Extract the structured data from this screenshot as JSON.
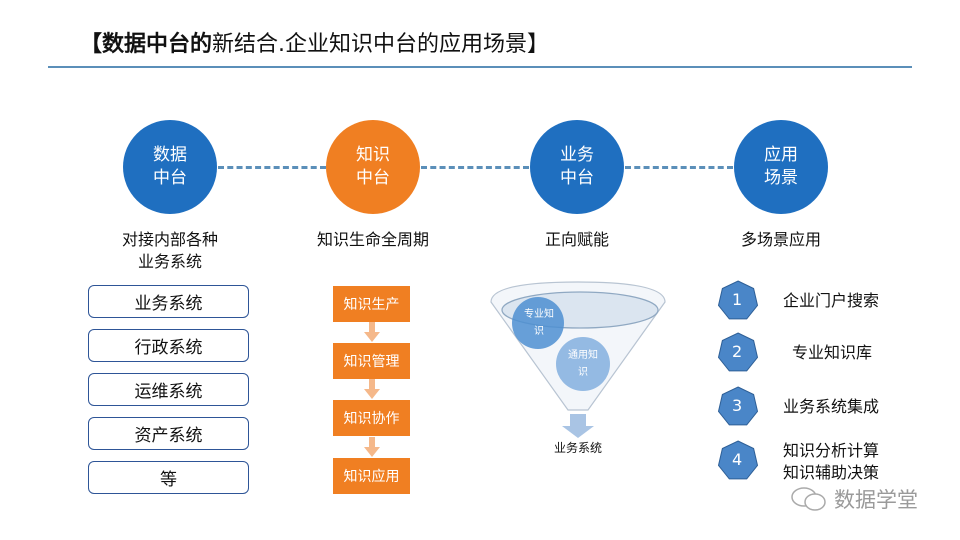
{
  "title": {
    "bold": "【数据中台的",
    "rest": "新结合.企业知识中台的应用场景】"
  },
  "stages": [
    {
      "label": "数据\n中台",
      "caption": "对接内部各种\n业务系统",
      "color": "#1f6fc0"
    },
    {
      "label": "知识\n中台",
      "caption": "知识生命全周期",
      "color": "#f07f22"
    },
    {
      "label": "业务\n中台",
      "caption": "正向赋能",
      "color": "#1f6fc0"
    },
    {
      "label": "应用\n场景",
      "caption": "多场景应用",
      "color": "#1f6fc0"
    }
  ],
  "systems": [
    "业务系统",
    "行政系统",
    "运维系统",
    "资产系统",
    "等"
  ],
  "knowledge_steps": [
    "知识生产",
    "知识管理",
    "知识协作",
    "知识应用"
  ],
  "funnel": {
    "inner": [
      "专业知\n识",
      "通用知\n识"
    ],
    "output": "业务系统"
  },
  "scenarios": [
    {
      "num": "1",
      "label": "企业门户搜索"
    },
    {
      "num": "2",
      "label": "专业知识库"
    },
    {
      "num": "3",
      "label": "业务系统集成"
    },
    {
      "num": "4",
      "label": "知识分析计算\n知识辅助决策"
    }
  ],
  "watermark": "数据学堂"
}
